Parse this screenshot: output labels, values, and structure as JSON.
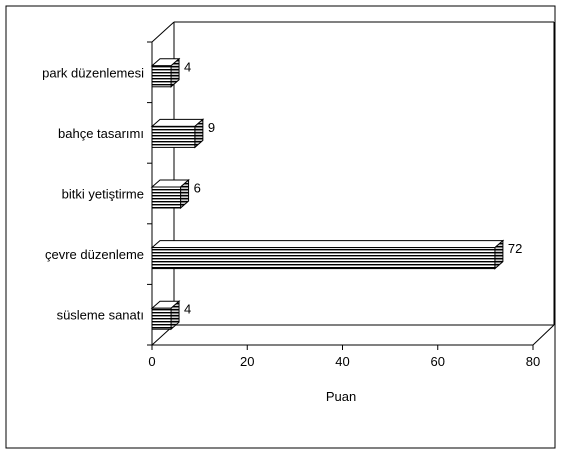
{
  "chart_data": {
    "type": "bar",
    "orientation": "horizontal",
    "style": "3d",
    "categories": [
      "park düzenlemesi",
      "bahçe tasarımı",
      "bitki yetiştirme",
      "çevre düzenleme",
      "süsleme sanatı"
    ],
    "values": [
      4,
      9,
      6,
      72,
      4
    ],
    "data_labels": [
      "4",
      "9",
      "6",
      "72",
      "4"
    ],
    "xlabel": "Puan",
    "ylabel": "",
    "xlim": [
      0,
      80
    ],
    "x_ticks": [
      0,
      20,
      40,
      60,
      80
    ],
    "x_tick_labels": [
      "0",
      "20",
      "40",
      "60",
      "80"
    ],
    "grid": false,
    "legend": "none",
    "bar_fill": "#ffffff",
    "bar_stripe_color": "#000000"
  }
}
